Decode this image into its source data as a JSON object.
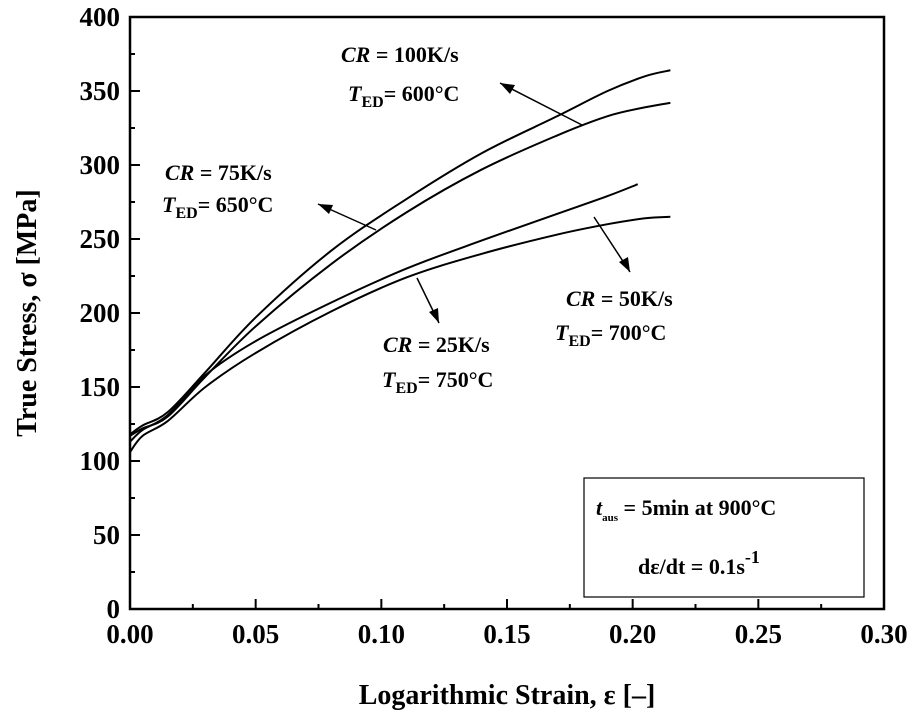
{
  "chart_data": {
    "type": "line",
    "xlabel": "Logarithmic Strain, ε [–]",
    "ylabel": "True Stress, σ [MPa]",
    "xlim": [
      0,
      0.3
    ],
    "ylim": [
      0,
      400
    ],
    "xticks": [
      "0.00",
      "0.05",
      "0.10",
      "0.15",
      "0.20",
      "0.25",
      "0.30"
    ],
    "yticks": [
      "0",
      "50",
      "100",
      "150",
      "200",
      "250",
      "300",
      "350",
      "400"
    ],
    "grid": false,
    "series": [
      {
        "key": "cr100",
        "x": [
          0.0,
          0.005,
          0.015,
          0.03,
          0.05,
          0.08,
          0.11,
          0.14,
          0.17,
          0.19,
          0.205,
          0.215
        ],
        "y": [
          118,
          124,
          133,
          160,
          197,
          242,
          277,
          308,
          333,
          350,
          360,
          364
        ]
      },
      {
        "key": "cr75",
        "x": [
          0.0,
          0.005,
          0.015,
          0.03,
          0.05,
          0.08,
          0.11,
          0.14,
          0.17,
          0.19,
          0.205,
          0.215
        ],
        "y": [
          117,
          122,
          130,
          157,
          191,
          233,
          268,
          297,
          320,
          333,
          339,
          342
        ]
      },
      {
        "key": "cr50",
        "x": [
          0.0,
          0.005,
          0.015,
          0.03,
          0.05,
          0.08,
          0.11,
          0.14,
          0.17,
          0.19,
          0.202
        ],
        "y": [
          113,
          121,
          131,
          158,
          181,
          207,
          230,
          249,
          267,
          279,
          287
        ]
      },
      {
        "key": "cr25",
        "x": [
          0.0,
          0.005,
          0.015,
          0.03,
          0.05,
          0.08,
          0.11,
          0.14,
          0.17,
          0.19,
          0.205,
          0.215
        ],
        "y": [
          106,
          117,
          127,
          150,
          173,
          201,
          224,
          240,
          253,
          260,
          264,
          265
        ]
      }
    ],
    "annotations": [
      {
        "key": "a100",
        "cr": "CR",
        "cr_val": " = 100K/s",
        "t": "T",
        "t_sub": "ED",
        "t_val": "= 600°C"
      },
      {
        "key": "a75",
        "cr": "CR",
        "cr_val": " = 75K/s",
        "t": "T",
        "t_sub": "ED",
        "t_val": "= 650°C"
      },
      {
        "key": "a50",
        "cr": "CR",
        "cr_val": " = 50K/s",
        "t": "T",
        "t_sub": "ED",
        "t_val": "= 700°C"
      },
      {
        "key": "a25",
        "cr": "CR",
        "cr_val": " = 25K/s",
        "t": "T",
        "t_sub": "ED",
        "t_val": "= 750°C"
      }
    ],
    "info_box": {
      "t": "t",
      "t_sub": "aus",
      "line1_rest": " =  5min at 900°C",
      "line2": "dε/dt = 0.1s",
      "line2_sup": "-1"
    }
  }
}
